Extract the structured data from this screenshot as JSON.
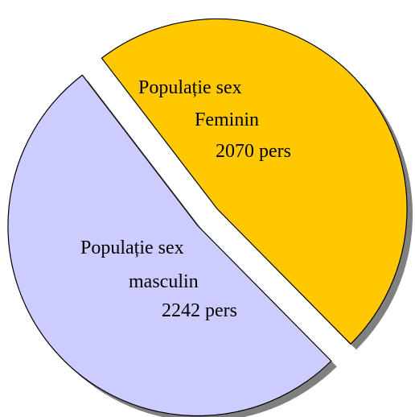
{
  "chart_data": {
    "type": "pie",
    "title": "",
    "slices": [
      {
        "label_lines": [
          "Populație sex",
          "Feminin",
          "2070 pers"
        ],
        "value": 2070,
        "color": "#FFC800"
      },
      {
        "label_lines": [
          "Populație sex",
          "masculin",
          "2242 pers"
        ],
        "value": 2242,
        "color": "#CCCCFF"
      }
    ],
    "exploded": true,
    "shadow_color": "#808080",
    "outline_color": "#000000"
  }
}
